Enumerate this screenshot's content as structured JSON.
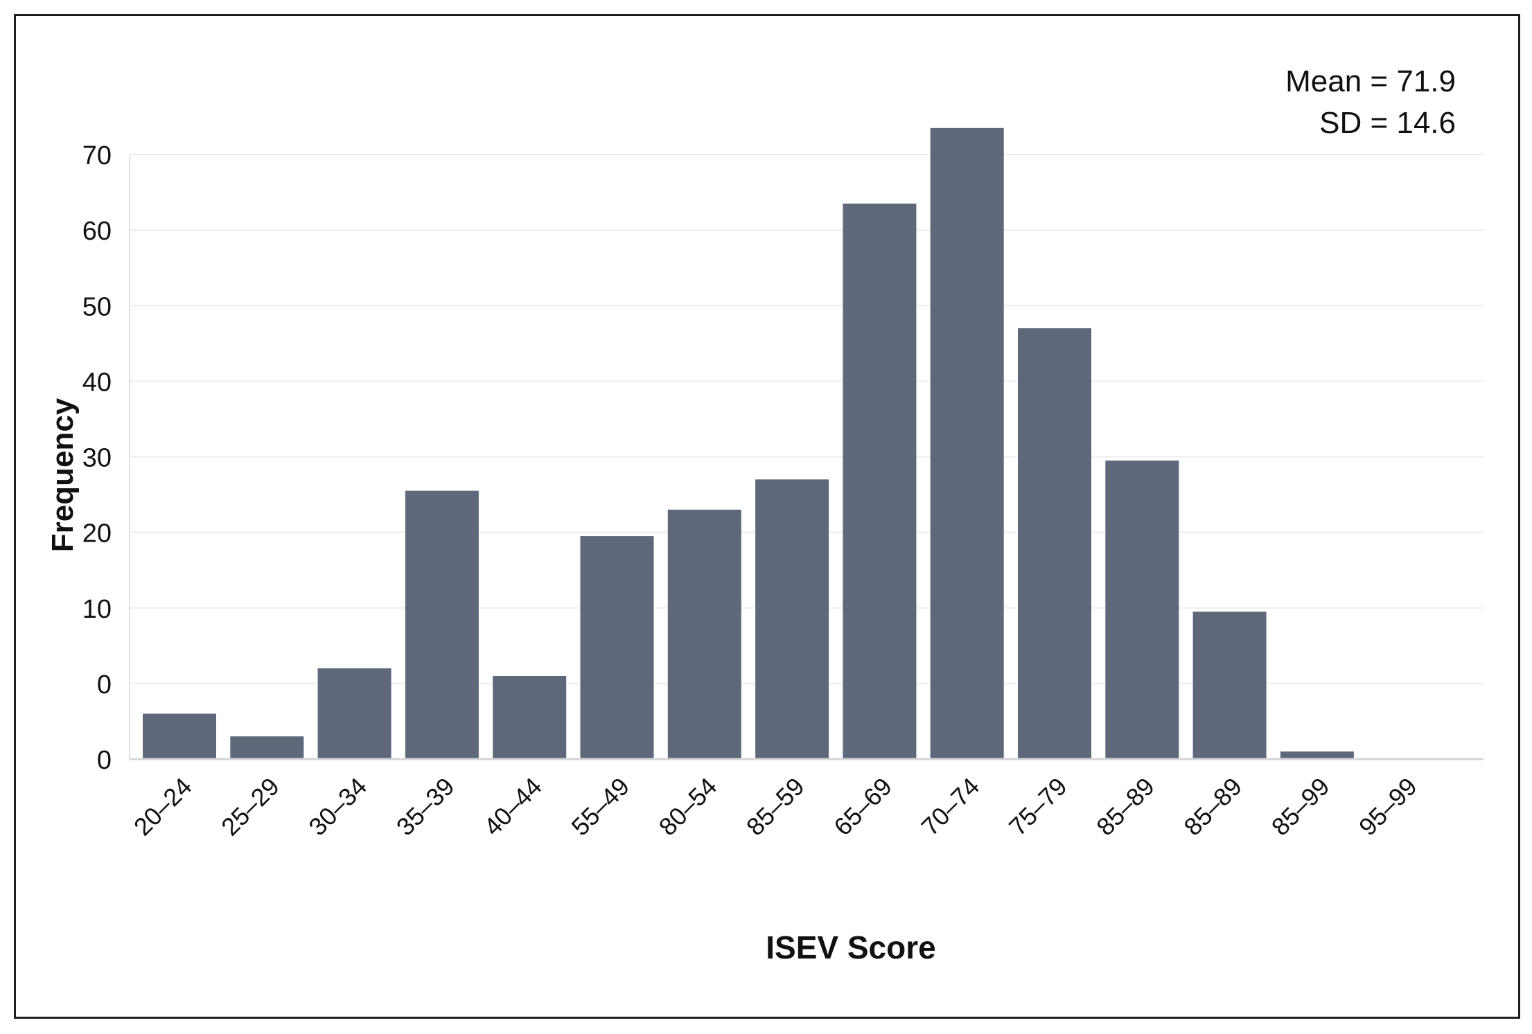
{
  "chart_data": {
    "type": "bar",
    "title": "",
    "xlabel": "ISEV Score",
    "ylabel": "Frequency",
    "y_tick_labels": [
      "0",
      "0",
      "10",
      "20",
      "30",
      "40",
      "50",
      "60",
      "70"
    ],
    "ylim": [
      0,
      80
    ],
    "grid": true,
    "categories": [
      "20–24",
      "25–29",
      "30–34",
      "35–39",
      "40–44",
      "55–49",
      "80–54",
      "85–59",
      "65–69",
      "70–74",
      "75–79",
      "85–89",
      "85–89",
      "85–99",
      "95–99"
    ],
    "values": [
      6,
      3,
      12,
      35.5,
      11,
      29.5,
      33,
      37,
      73.5,
      83.5,
      57,
      39.5,
      19.5,
      1,
      0
    ],
    "annotations": {
      "mean": "Mean = 71.9",
      "sd": "SD = 14.6"
    },
    "colors": {
      "bar": "#5f687b",
      "grid": "#ececec",
      "text": "#111111"
    }
  }
}
